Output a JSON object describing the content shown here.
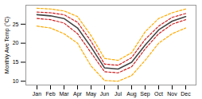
{
  "chart_data": {
    "type": "line",
    "ylabel": "Monthly Ave Temp (°C)",
    "categories": [
      "Jan",
      "Feb",
      "Mar",
      "Apr",
      "May",
      "Jun",
      "Jul",
      "Aug",
      "Sep",
      "Oct",
      "Nov",
      "Dec"
    ],
    "series": [
      {
        "color": "#ffaa00",
        "line_style": "dashed",
        "values": [
          24.5,
          24.0,
          22.5,
          20.0,
          14.0,
          10.2,
          10.0,
          11.5,
          15.5,
          20.0,
          22.5,
          24.0
        ]
      },
      {
        "color": "#ffaa00",
        "line_style": "dashed",
        "values": [
          29.2,
          29.0,
          28.5,
          27.0,
          22.0,
          16.0,
          15.5,
          17.5,
          23.0,
          26.5,
          28.0,
          29.0
        ]
      },
      {
        "color": "#cc2222",
        "line_style": "dashed",
        "values": [
          26.5,
          26.2,
          25.3,
          22.5,
          17.5,
          12.5,
          12.2,
          13.8,
          18.5,
          22.5,
          25.0,
          26.2
        ]
      },
      {
        "color": "#cc2222",
        "line_style": "dashed",
        "values": [
          28.2,
          28.0,
          27.5,
          25.5,
          20.5,
          14.5,
          14.2,
          16.2,
          21.0,
          24.5,
          26.8,
          27.8
        ]
      },
      {
        "color": "#444444",
        "line_style": "solid",
        "values": [
          27.5,
          27.2,
          26.5,
          24.0,
          19.0,
          13.5,
          13.2,
          15.0,
          19.5,
          23.5,
          25.8,
          27.0
        ]
      }
    ],
    "ylim": [
      9,
      30
    ],
    "yticks": [
      10,
      15,
      20,
      25
    ],
    "grid": false
  }
}
